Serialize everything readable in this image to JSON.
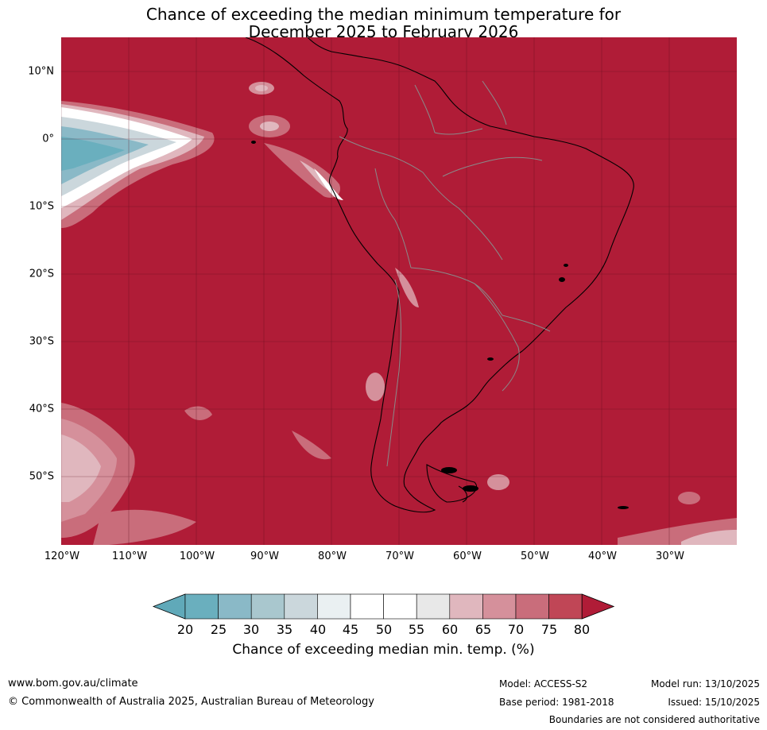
{
  "title": {
    "line1": "Chance of exceeding the median minimum temperature for",
    "line2": "December 2025 to February 2026"
  },
  "map": {
    "lat_labels": [
      "10°N",
      "0°",
      "10°S",
      "20°S",
      "30°S",
      "40°S",
      "50°S"
    ],
    "lon_labels": [
      "120°W",
      "110°W",
      "100°W",
      "90°W",
      "80°W",
      "70°W",
      "60°W",
      "50°W",
      "40°W",
      "30°W"
    ],
    "background_color": "#b01c37"
  },
  "colorbar": {
    "ticks": [
      "20",
      "25",
      "30",
      "35",
      "40",
      "45",
      "50",
      "55",
      "60",
      "65",
      "70",
      "75",
      "80"
    ],
    "colors": [
      "#60a9b9",
      "#6aafbe",
      "#8ab9c7",
      "#a9c7ce",
      "#cbd7dc",
      "#eaf0f2",
      "#ffffff",
      "#ffffff",
      "#e8e8e8",
      "#e0b7be",
      "#d5909b",
      "#c96d7b",
      "#c04656",
      "#b01c37"
    ],
    "label": "Chance of exceeding median min. temp. (%)"
  },
  "footer": {
    "website": "www.bom.gov.au/climate",
    "copyright": "© Commonwealth of Australia 2025, Australian Bureau of Meteorology",
    "model": "Model: ACCESS-S2",
    "base_period": "Base period: 1981-2018",
    "model_run": "Model run: 13/10/2025",
    "issued": "Issued: 15/10/2025",
    "disclaimer": "Boundaries are not considered authoritative"
  }
}
